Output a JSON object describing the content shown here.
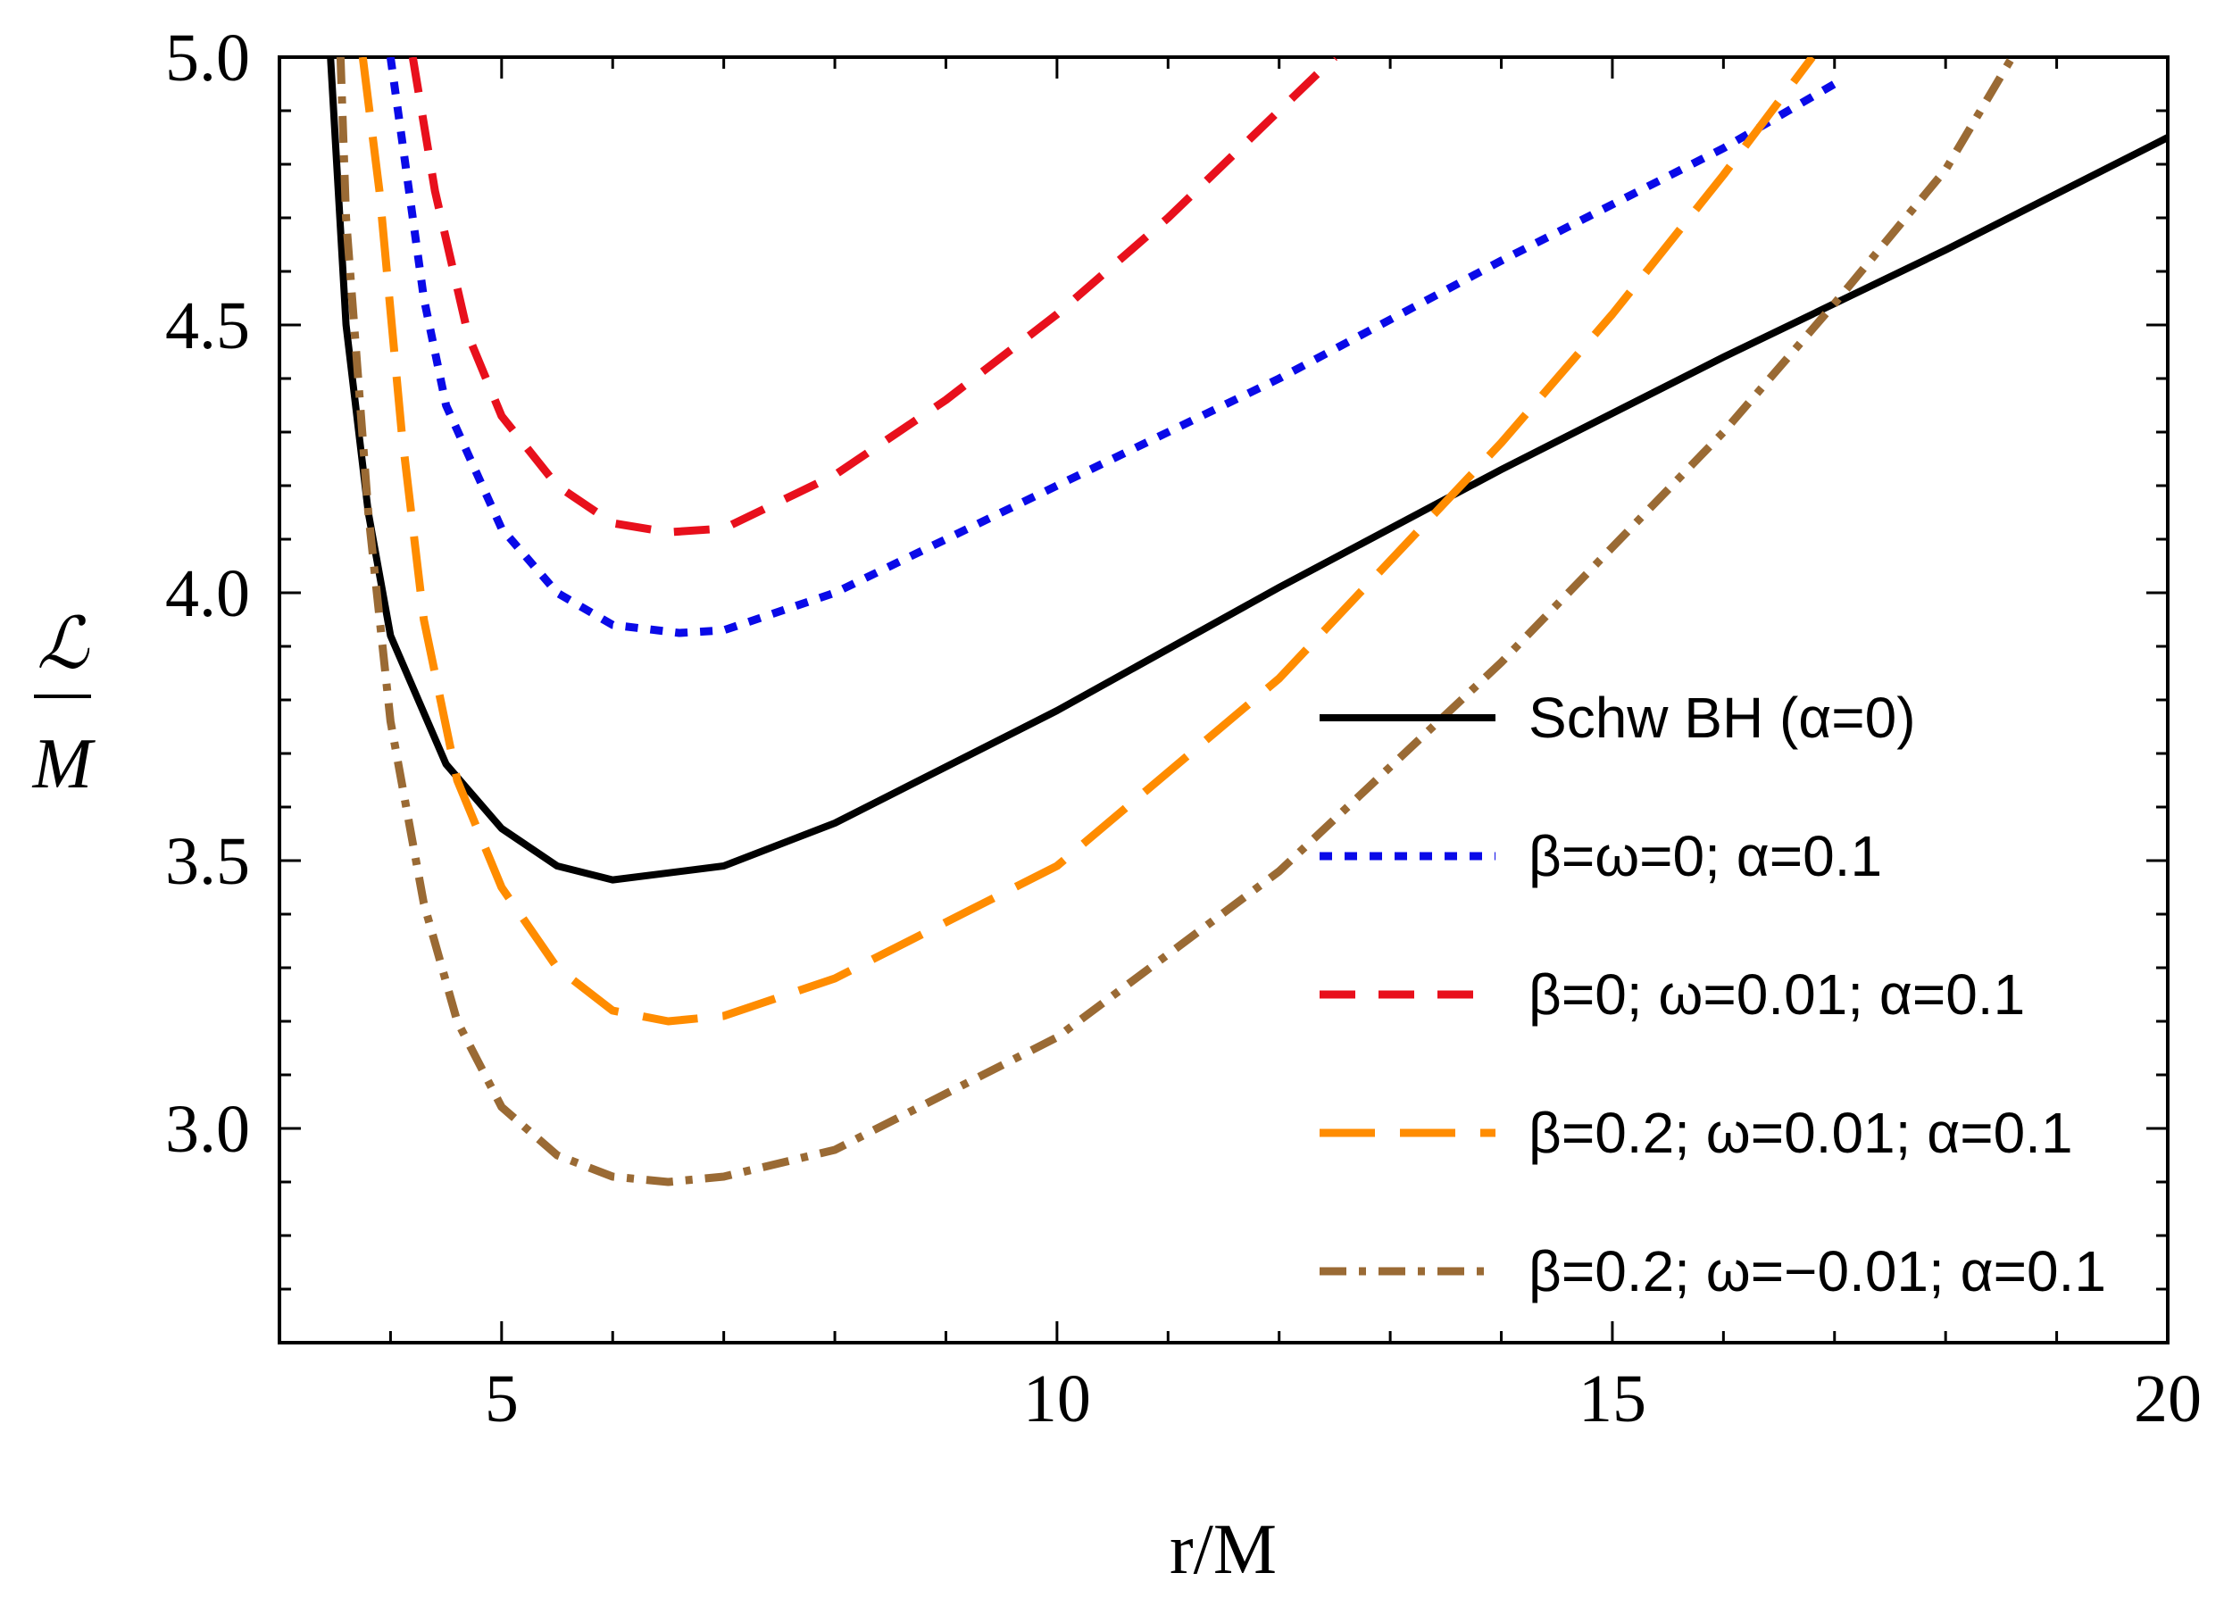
{
  "chart_data": {
    "type": "line",
    "title": "",
    "xlabel": "r/M",
    "ylabel": {
      "numerator": "ℒ",
      "denominator": "M"
    },
    "xlim": [
      3,
      20
    ],
    "ylim": [
      2.6,
      5.0
    ],
    "x_ticks": [
      5,
      10,
      15,
      20
    ],
    "x_tick_labels": [
      "5",
      "10",
      "15",
      "20"
    ],
    "y_ticks": [
      3.0,
      3.5,
      4.0,
      4.5,
      5.0
    ],
    "y_tick_labels": [
      "3.0",
      "3.5",
      "4.0",
      "4.5",
      "5.0"
    ],
    "grid": false,
    "legend_position": "right",
    "series": [
      {
        "name": "Schw BH (α=0)",
        "color": "#000000",
        "style": "solid",
        "points": [
          [
            3.46,
            5.0
          ],
          [
            3.6,
            4.5
          ],
          [
            3.8,
            4.15
          ],
          [
            4.0,
            3.92
          ],
          [
            4.5,
            3.68
          ],
          [
            5.0,
            3.56
          ],
          [
            5.5,
            3.49
          ],
          [
            6.0,
            3.464
          ],
          [
            7.0,
            3.49
          ],
          [
            8.0,
            3.57
          ],
          [
            10.0,
            3.78
          ],
          [
            12.0,
            4.01
          ],
          [
            14.0,
            4.23
          ],
          [
            16.0,
            4.44
          ],
          [
            18.0,
            4.64
          ],
          [
            20.0,
            4.85
          ]
        ]
      },
      {
        "name": "β=ω=0; α=0.1",
        "color": "#0a0ae8",
        "style": "dotted",
        "points": [
          [
            4.0,
            5.0
          ],
          [
            4.1,
            4.85
          ],
          [
            4.3,
            4.55
          ],
          [
            4.5,
            4.35
          ],
          [
            5.0,
            4.12
          ],
          [
            5.5,
            4.0
          ],
          [
            6.0,
            3.94
          ],
          [
            6.6,
            3.925
          ],
          [
            7.0,
            3.93
          ],
          [
            8.0,
            4.0
          ],
          [
            10.0,
            4.2
          ],
          [
            12.0,
            4.4
          ],
          [
            14.0,
            4.62
          ],
          [
            16.0,
            4.83
          ],
          [
            17.0,
            4.95
          ]
        ]
      },
      {
        "name": "β=0; ω=0.01; α=0.1",
        "color": "#e8101c",
        "style": "dashed",
        "points": [
          [
            4.2,
            5.0
          ],
          [
            4.4,
            4.75
          ],
          [
            4.7,
            4.48
          ],
          [
            5.0,
            4.33
          ],
          [
            5.5,
            4.2
          ],
          [
            6.0,
            4.13
          ],
          [
            6.5,
            4.113
          ],
          [
            7.0,
            4.12
          ],
          [
            8.0,
            4.22
          ],
          [
            9.0,
            4.36
          ],
          [
            10.0,
            4.52
          ],
          [
            11.0,
            4.7
          ],
          [
            12.0,
            4.9
          ],
          [
            12.5,
            5.0
          ]
        ]
      },
      {
        "name": "β=0.2; ω=0.01; α=0.1",
        "color": "#ff8c00",
        "style": "long-dashed",
        "points": [
          [
            3.75,
            5.0
          ],
          [
            3.9,
            4.75
          ],
          [
            4.1,
            4.3
          ],
          [
            4.3,
            3.95
          ],
          [
            4.6,
            3.65
          ],
          [
            5.0,
            3.45
          ],
          [
            5.5,
            3.3
          ],
          [
            6.0,
            3.22
          ],
          [
            6.5,
            3.2
          ],
          [
            7.0,
            3.21
          ],
          [
            8.0,
            3.28
          ],
          [
            10.0,
            3.49
          ],
          [
            12.0,
            3.84
          ],
          [
            14.0,
            4.28
          ],
          [
            15.0,
            4.52
          ],
          [
            16.0,
            4.78
          ],
          [
            16.8,
            5.0
          ]
        ]
      },
      {
        "name": "β=0.2; ω=−0.01; α=0.1",
        "color": "#9a6a34",
        "style": "dash-dot",
        "points": [
          [
            3.55,
            5.0
          ],
          [
            3.6,
            4.7
          ],
          [
            3.8,
            4.15
          ],
          [
            4.0,
            3.76
          ],
          [
            4.3,
            3.42
          ],
          [
            4.6,
            3.2
          ],
          [
            5.0,
            3.04
          ],
          [
            5.5,
            2.95
          ],
          [
            6.0,
            2.91
          ],
          [
            6.5,
            2.9
          ],
          [
            7.0,
            2.91
          ],
          [
            8.0,
            2.96
          ],
          [
            10.0,
            3.17
          ],
          [
            12.0,
            3.48
          ],
          [
            14.0,
            3.87
          ],
          [
            16.0,
            4.3
          ],
          [
            17.0,
            4.54
          ],
          [
            18.0,
            4.79
          ],
          [
            18.6,
            5.0
          ]
        ]
      }
    ]
  }
}
